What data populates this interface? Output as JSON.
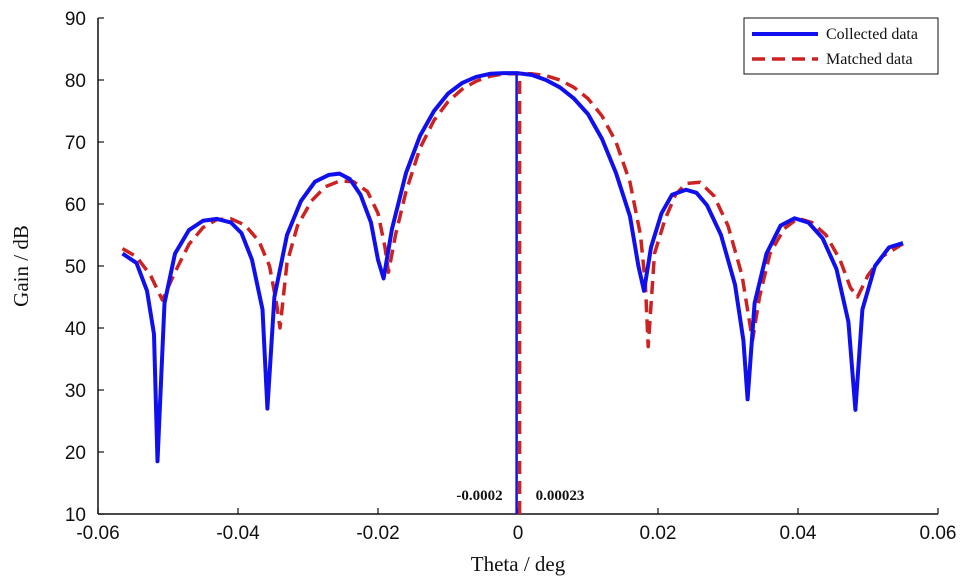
{
  "chart_data": {
    "type": "line",
    "xlabel": "Theta / deg",
    "ylabel": "Gain / dB",
    "xlim": [
      -0.06,
      0.06
    ],
    "ylim": [
      10,
      90
    ],
    "x_ticks": [
      -0.06,
      -0.04,
      -0.02,
      0,
      0.02,
      0.04,
      0.06
    ],
    "x_tick_labels": [
      "-0.06",
      "-0.04",
      "-0.02",
      "0",
      "0.02",
      "0.04",
      "0.06"
    ],
    "y_ticks": [
      10,
      20,
      30,
      40,
      50,
      60,
      70,
      80,
      90
    ],
    "y_tick_labels": [
      "10",
      "20",
      "30",
      "40",
      "50",
      "60",
      "70",
      "80",
      "90"
    ],
    "grid": false,
    "legend": {
      "position": "top-right"
    },
    "series": [
      {
        "name": "Collected data",
        "color": "#1010ee",
        "style": "solid",
        "points": [
          [
            -0.0565,
            52.0
          ],
          [
            -0.0545,
            50.5
          ],
          [
            -0.053,
            46.0
          ],
          [
            -0.052,
            39.0
          ],
          [
            -0.0515,
            18.5
          ],
          [
            -0.0505,
            44.0
          ],
          [
            -0.049,
            52.0
          ],
          [
            -0.047,
            55.8
          ],
          [
            -0.045,
            57.3
          ],
          [
            -0.043,
            57.6
          ],
          [
            -0.041,
            57.0
          ],
          [
            -0.0395,
            55.3
          ],
          [
            -0.038,
            51.0
          ],
          [
            -0.0365,
            43.0
          ],
          [
            -0.0358,
            27.0
          ],
          [
            -0.0348,
            45.0
          ],
          [
            -0.033,
            55.0
          ],
          [
            -0.031,
            60.5
          ],
          [
            -0.029,
            63.6
          ],
          [
            -0.027,
            64.7
          ],
          [
            -0.0255,
            64.9
          ],
          [
            -0.024,
            64.0
          ],
          [
            -0.0225,
            61.5
          ],
          [
            -0.021,
            57.0
          ],
          [
            -0.02,
            51.0
          ],
          [
            -0.0192,
            48.0
          ],
          [
            -0.018,
            56.0
          ],
          [
            -0.016,
            65.0
          ],
          [
            -0.014,
            71.0
          ],
          [
            -0.012,
            75.0
          ],
          [
            -0.01,
            77.8
          ],
          [
            -0.008,
            79.5
          ],
          [
            -0.006,
            80.5
          ],
          [
            -0.004,
            81.0
          ],
          [
            -0.002,
            81.1
          ],
          [
            0.0,
            81.1
          ],
          [
            0.002,
            80.8
          ],
          [
            0.004,
            80.0
          ],
          [
            0.006,
            78.8
          ],
          [
            0.008,
            77.0
          ],
          [
            0.01,
            74.5
          ],
          [
            0.012,
            70.5
          ],
          [
            0.014,
            65.0
          ],
          [
            0.016,
            58.0
          ],
          [
            0.0172,
            50.0
          ],
          [
            0.018,
            46.0
          ],
          [
            0.019,
            53.0
          ],
          [
            0.0205,
            58.5
          ],
          [
            0.022,
            61.5
          ],
          [
            0.024,
            62.3
          ],
          [
            0.0255,
            61.8
          ],
          [
            0.027,
            59.8
          ],
          [
            0.029,
            55.0
          ],
          [
            0.031,
            47.0
          ],
          [
            0.0322,
            38.0
          ],
          [
            0.0328,
            28.5
          ],
          [
            0.0338,
            44.0
          ],
          [
            0.0355,
            52.0
          ],
          [
            0.0375,
            56.5
          ],
          [
            0.0395,
            57.7
          ],
          [
            0.0415,
            57.0
          ],
          [
            0.0435,
            54.5
          ],
          [
            0.0455,
            49.5
          ],
          [
            0.0472,
            41.0
          ],
          [
            0.0482,
            26.8
          ],
          [
            0.0492,
            43.0
          ],
          [
            0.051,
            50.0
          ],
          [
            0.053,
            53.0
          ],
          [
            0.055,
            53.7
          ]
        ]
      },
      {
        "name": "Matched data",
        "color": "#cc2222",
        "style": "dashed",
        "points": [
          [
            -0.0565,
            52.8
          ],
          [
            -0.0545,
            51.5
          ],
          [
            -0.0525,
            48.5
          ],
          [
            -0.0508,
            44.5
          ],
          [
            -0.049,
            49.0
          ],
          [
            -0.047,
            53.5
          ],
          [
            -0.045,
            56.2
          ],
          [
            -0.043,
            57.5
          ],
          [
            -0.041,
            57.6
          ],
          [
            -0.039,
            56.6
          ],
          [
            -0.037,
            54.0
          ],
          [
            -0.0355,
            50.0
          ],
          [
            -0.0345,
            44.0
          ],
          [
            -0.034,
            40.0
          ],
          [
            -0.033,
            50.5
          ],
          [
            -0.0315,
            56.5
          ],
          [
            -0.0295,
            60.5
          ],
          [
            -0.0275,
            62.8
          ],
          [
            -0.0255,
            63.7
          ],
          [
            -0.0235,
            63.6
          ],
          [
            -0.0215,
            62.0
          ],
          [
            -0.02,
            58.5
          ],
          [
            -0.019,
            53.0
          ],
          [
            -0.0185,
            49.0
          ],
          [
            -0.0175,
            55.0
          ],
          [
            -0.016,
            62.0
          ],
          [
            -0.014,
            69.0
          ],
          [
            -0.012,
            73.5
          ],
          [
            -0.01,
            76.5
          ],
          [
            -0.008,
            78.5
          ],
          [
            -0.006,
            79.8
          ],
          [
            -0.004,
            80.6
          ],
          [
            -0.002,
            81.0
          ],
          [
            0.0,
            81.0
          ],
          [
            0.002,
            81.0
          ],
          [
            0.004,
            80.7
          ],
          [
            0.006,
            80.0
          ],
          [
            0.008,
            78.8
          ],
          [
            0.01,
            77.0
          ],
          [
            0.012,
            74.2
          ],
          [
            0.014,
            70.0
          ],
          [
            0.016,
            63.5
          ],
          [
            0.0175,
            55.0
          ],
          [
            0.0182,
            47.0
          ],
          [
            0.0186,
            37.0
          ],
          [
            0.0195,
            52.0
          ],
          [
            0.021,
            57.5
          ],
          [
            0.0225,
            61.5
          ],
          [
            0.024,
            63.3
          ],
          [
            0.026,
            63.5
          ],
          [
            0.028,
            61.3
          ],
          [
            0.03,
            56.5
          ],
          [
            0.032,
            48.5
          ],
          [
            0.0335,
            38.0
          ],
          [
            0.0345,
            45.0
          ],
          [
            0.036,
            52.0
          ],
          [
            0.038,
            56.0
          ],
          [
            0.04,
            57.7
          ],
          [
            0.042,
            57.0
          ],
          [
            0.044,
            55.0
          ],
          [
            0.046,
            51.0
          ],
          [
            0.0475,
            46.5
          ],
          [
            0.0485,
            45.0
          ],
          [
            0.05,
            48.5
          ],
          [
            0.052,
            51.5
          ],
          [
            0.055,
            53.6
          ]
        ]
      }
    ],
    "markers": [
      {
        "x": -0.0002,
        "label": "-0.0002",
        "color": "#1010ee",
        "style": "solid",
        "y_top": 81.1
      },
      {
        "x": 0.00023,
        "label": "0.00023",
        "color": "#cc2222",
        "style": "dashed",
        "y_top": 81.0
      }
    ]
  }
}
